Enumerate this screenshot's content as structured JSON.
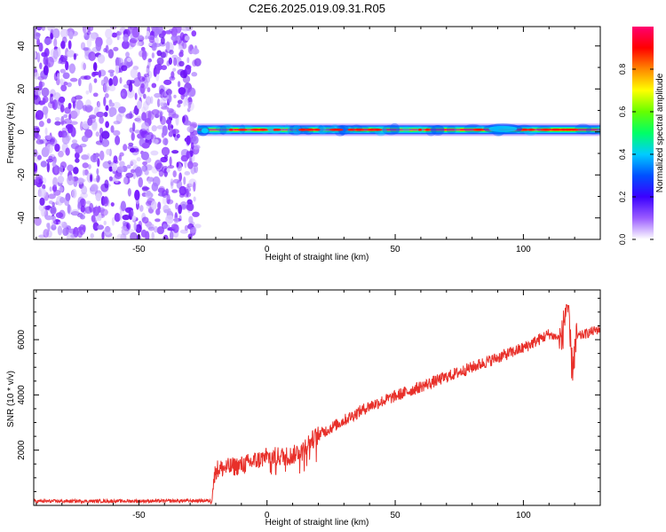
{
  "title": "C2E6.2025.019.09.31.R05",
  "colors": {
    "snr_line": "#e8302a",
    "background": "#ffffff",
    "axes": "#000000",
    "noise_dark": "#7a1fff",
    "noise_light": "#d8c4ff"
  },
  "chart_data": [
    {
      "type": "heatmap",
      "title": "C2E6.2025.019.09.31.R05",
      "xlabel": "Height of straight line (km)",
      "ylabel": "Frequency (Hz)",
      "xlim": [
        -91,
        130
      ],
      "ylim": [
        -50,
        49
      ],
      "xticks": [
        -50,
        0,
        50,
        100
      ],
      "yticks": [
        -40,
        -20,
        0,
        20,
        40
      ],
      "colorbar": {
        "label": "Normalized spectral amplitude",
        "range": [
          0,
          1
        ],
        "ticks": [
          "0.0",
          "0.2",
          "0.4",
          "0.6",
          "0.8"
        ],
        "colormap": [
          "#ffffff",
          "#9a5cff",
          "#3b00ff",
          "#0050ff",
          "#00ccff",
          "#00ff66",
          "#66ff00",
          "#ffff00",
          "#ff8800",
          "#ff0000",
          "#ff0070"
        ]
      },
      "regions": [
        {
          "name": "noise",
          "x_range": [
            -91,
            -27
          ],
          "freq_range": [
            -50,
            49
          ],
          "amplitude": 0.1
        },
        {
          "name": "signal",
          "x_range": [
            -27,
            130
          ],
          "freq_center": 1,
          "amplitude": 0.85
        }
      ],
      "grid": false
    },
    {
      "type": "line",
      "xlabel": "Height of straight line (km)",
      "ylabel": "SNR (10 * v/v)",
      "xlim": [
        -91,
        130
      ],
      "ylim": [
        0,
        7800
      ],
      "xticks": [
        -50,
        0,
        50,
        100
      ],
      "yticks": [
        2000,
        4000,
        6000
      ],
      "grid": false,
      "series": [
        {
          "values_description_points": [
            [
              -91,
              150
            ],
            [
              -40,
              160
            ],
            [
              -22,
              170
            ],
            [
              -20,
              1300
            ],
            [
              -10,
              1450
            ],
            [
              0,
              1750
            ],
            [
              10,
              1800
            ],
            [
              20,
              2550
            ],
            [
              40,
              3600
            ],
            [
              60,
              4300
            ],
            [
              80,
              5000
            ],
            [
              100,
              5700
            ],
            [
              110,
              6200
            ],
            [
              115,
              6000
            ],
            [
              117,
              7400
            ],
            [
              119,
              5000
            ],
            [
              121,
              6100
            ],
            [
              130,
              6400
            ]
          ]
        }
      ]
    }
  ]
}
